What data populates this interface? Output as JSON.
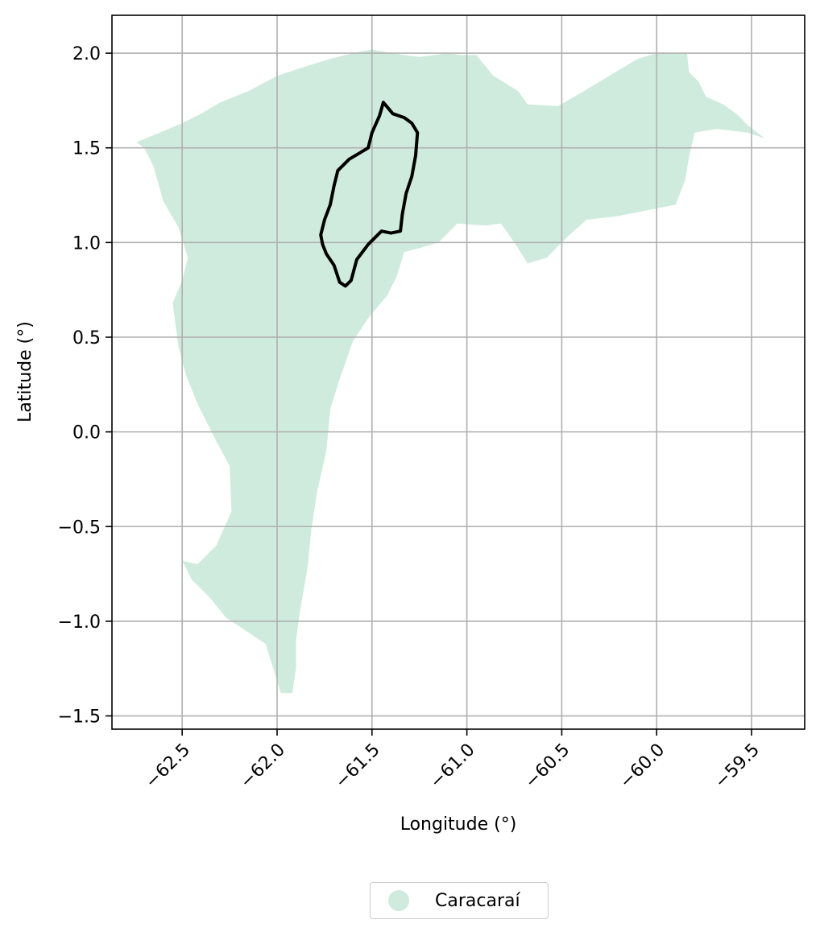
{
  "chart_data": {
    "type": "map",
    "xlabel": "Longitude (°)",
    "ylabel": "Latitude (°)",
    "xlim": [
      -62.87,
      -59.22
    ],
    "ylim": [
      -1.57,
      2.2
    ],
    "xticks": [
      -62.5,
      -62.0,
      -61.5,
      -61.0,
      -60.5,
      -60.0,
      -59.5
    ],
    "xtick_labels": [
      "−62.5",
      "−62.0",
      "−61.5",
      "−61.0",
      "−60.5",
      "−60.0",
      "−59.5"
    ],
    "yticks": [
      -1.5,
      -1.0,
      -0.5,
      0.0,
      0.5,
      1.0,
      1.5,
      2.0
    ],
    "ytick_labels": [
      "−1.5",
      "−1.0",
      "−0.5",
      "0.0",
      "0.5",
      "1.0",
      "1.5",
      "2.0"
    ],
    "grid": true,
    "legend_position": "bottom-center",
    "colors": {
      "region_fill": "#cfebdd",
      "outline": "#000000",
      "grid": "#b0b0b0"
    },
    "legend": [
      {
        "label": "Caracaraí",
        "color": "#cfebdd"
      }
    ],
    "region_polygon": [
      [
        -62.74,
        1.53
      ],
      [
        -62.62,
        1.58
      ],
      [
        -62.5,
        1.63
      ],
      [
        -62.4,
        1.68
      ],
      [
        -62.3,
        1.74
      ],
      [
        -62.15,
        1.8
      ],
      [
        -62.0,
        1.88
      ],
      [
        -61.85,
        1.93
      ],
      [
        -61.72,
        1.97
      ],
      [
        -61.6,
        2.0
      ],
      [
        -61.5,
        2.02
      ],
      [
        -61.4,
        2.0
      ],
      [
        -61.25,
        1.98
      ],
      [
        -61.1,
        2.0
      ],
      [
        -61.03,
        1.99
      ],
      [
        -60.95,
        1.99
      ],
      [
        -60.86,
        1.88
      ],
      [
        -60.73,
        1.8
      ],
      [
        -60.68,
        1.73
      ],
      [
        -60.52,
        1.72
      ],
      [
        -60.4,
        1.79
      ],
      [
        -60.25,
        1.88
      ],
      [
        -60.1,
        1.97
      ],
      [
        -60.0,
        2.0
      ],
      [
        -59.84,
        2.0
      ],
      [
        -59.83,
        1.9
      ],
      [
        -59.78,
        1.85
      ],
      [
        -59.74,
        1.77
      ],
      [
        -59.65,
        1.73
      ],
      [
        -59.58,
        1.68
      ],
      [
        -59.52,
        1.62
      ],
      [
        -59.43,
        1.55
      ],
      [
        -59.52,
        1.58
      ],
      [
        -59.68,
        1.6
      ],
      [
        -59.8,
        1.58
      ],
      [
        -59.83,
        1.45
      ],
      [
        -59.85,
        1.33
      ],
      [
        -59.9,
        1.2
      ],
      [
        -60.05,
        1.17
      ],
      [
        -60.2,
        1.14
      ],
      [
        -60.37,
        1.12
      ],
      [
        -60.47,
        1.03
      ],
      [
        -60.58,
        0.92
      ],
      [
        -60.68,
        0.89
      ],
      [
        -60.75,
        1.0
      ],
      [
        -60.82,
        1.1
      ],
      [
        -60.9,
        1.09
      ],
      [
        -61.05,
        1.1
      ],
      [
        -61.15,
        1.0
      ],
      [
        -61.25,
        0.97
      ],
      [
        -61.33,
        0.95
      ],
      [
        -61.37,
        0.82
      ],
      [
        -61.42,
        0.72
      ],
      [
        -61.52,
        0.6
      ],
      [
        -61.6,
        0.48
      ],
      [
        -61.67,
        0.28
      ],
      [
        -61.72,
        0.12
      ],
      [
        -61.74,
        -0.1
      ],
      [
        -61.79,
        -0.32
      ],
      [
        -61.82,
        -0.52
      ],
      [
        -61.84,
        -0.72
      ],
      [
        -61.88,
        -0.95
      ],
      [
        -61.9,
        -1.1
      ],
      [
        -61.9,
        -1.25
      ],
      [
        -61.92,
        -1.38
      ],
      [
        -61.98,
        -1.38
      ],
      [
        -62.02,
        -1.25
      ],
      [
        -62.06,
        -1.12
      ],
      [
        -62.18,
        -1.04
      ],
      [
        -62.27,
        -0.98
      ],
      [
        -62.35,
        -0.88
      ],
      [
        -62.45,
        -0.78
      ],
      [
        -62.5,
        -0.68
      ],
      [
        -62.42,
        -0.7
      ],
      [
        -62.32,
        -0.6
      ],
      [
        -62.24,
        -0.42
      ],
      [
        -62.25,
        -0.18
      ],
      [
        -62.32,
        -0.05
      ],
      [
        -62.42,
        0.15
      ],
      [
        -62.48,
        0.3
      ],
      [
        -62.52,
        0.45
      ],
      [
        -62.55,
        0.68
      ],
      [
        -62.5,
        0.8
      ],
      [
        -62.47,
        0.92
      ],
      [
        -62.52,
        1.08
      ],
      [
        -62.6,
        1.22
      ],
      [
        -62.65,
        1.4
      ],
      [
        -62.7,
        1.5
      ]
    ],
    "outline_polygon": [
      [
        -61.44,
        1.74
      ],
      [
        -61.39,
        1.68
      ],
      [
        -61.33,
        1.66
      ],
      [
        -61.29,
        1.63
      ],
      [
        -61.26,
        1.58
      ],
      [
        -61.27,
        1.46
      ],
      [
        -61.29,
        1.35
      ],
      [
        -61.32,
        1.26
      ],
      [
        -61.34,
        1.15
      ],
      [
        -61.35,
        1.06
      ],
      [
        -61.4,
        1.05
      ],
      [
        -61.45,
        1.06
      ],
      [
        -61.52,
        0.99
      ],
      [
        -61.58,
        0.91
      ],
      [
        -61.61,
        0.8
      ],
      [
        -61.64,
        0.77
      ],
      [
        -61.67,
        0.79
      ],
      [
        -61.7,
        0.88
      ],
      [
        -61.74,
        0.94
      ],
      [
        -61.76,
        0.99
      ],
      [
        -61.77,
        1.04
      ],
      [
        -61.75,
        1.12
      ],
      [
        -61.72,
        1.2
      ],
      [
        -61.7,
        1.3
      ],
      [
        -61.68,
        1.38
      ],
      [
        -61.62,
        1.44
      ],
      [
        -61.57,
        1.47
      ],
      [
        -61.52,
        1.5
      ],
      [
        -61.5,
        1.58
      ],
      [
        -61.46,
        1.67
      ]
    ]
  }
}
